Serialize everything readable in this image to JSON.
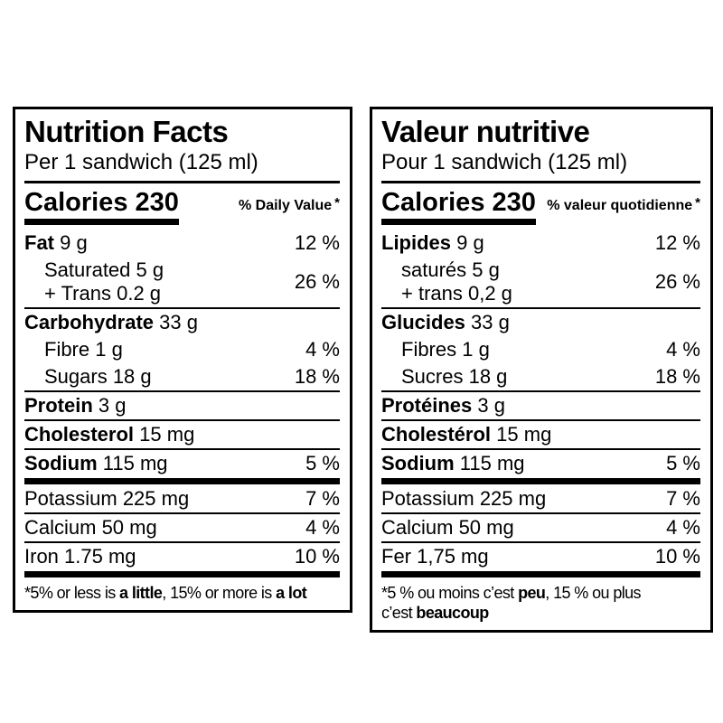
{
  "colors": {
    "text": "#000000",
    "background": "#ffffff",
    "border": "#000000"
  },
  "en": {
    "title": "Nutrition Facts",
    "serving": "Per 1 sandwich (125 ml)",
    "calories_label": "Calories",
    "calories_value": "230",
    "dv_header": "% Daily Value",
    "dv_asterisk": "*",
    "fat_label": "Fat",
    "fat_amount": "9 g",
    "fat_pct": "12 %",
    "saturated_line": "Saturated 5 g",
    "trans_line": "+ Trans 0.2 g",
    "sat_trans_pct": "26 %",
    "carb_label": "Carbohydrate",
    "carb_amount": "33 g",
    "fibre_line": "Fibre 1 g",
    "fibre_pct": "4 %",
    "sugars_line": "Sugars 18 g",
    "sugars_pct": "18 %",
    "protein_label": "Protein",
    "protein_amount": "3 g",
    "cholesterol_label": "Cholesterol",
    "cholesterol_amount": "15 mg",
    "sodium_label": "Sodium",
    "sodium_amount": "115 mg",
    "sodium_pct": "5 %",
    "potassium_line": "Potassium 225 mg",
    "potassium_pct": "7 %",
    "calcium_line": "Calcium 50 mg",
    "calcium_pct": "4 %",
    "iron_line": "Iron 1.75 mg",
    "iron_pct": "10 %",
    "fn_1": "*5% or less is ",
    "fn_b1": "a little",
    "fn_2": ", 15% or more is ",
    "fn_b2": "a lot"
  },
  "fr": {
    "title": "Valeur nutritive",
    "serving": "Pour 1 sandwich (125 ml)",
    "calories_label": "Calories",
    "calories_value": "230",
    "dv_header": "% valeur quotidienne",
    "dv_asterisk": "*",
    "fat_label": "Lipides",
    "fat_amount": "9 g",
    "fat_pct": "12 %",
    "saturated_line": "saturés 5 g",
    "trans_line": "+ trans 0,2 g",
    "sat_trans_pct": "26 %",
    "carb_label": "Glucides",
    "carb_amount": "33 g",
    "fibre_line": "Fibres 1 g",
    "fibre_pct": "4 %",
    "sugars_line": "Sucres 18 g",
    "sugars_pct": "18 %",
    "protein_label": "Protéines",
    "protein_amount": "3 g",
    "cholesterol_label": "Cholestérol",
    "cholesterol_amount": "15 mg",
    "sodium_label": "Sodium",
    "sodium_amount": "115 mg",
    "sodium_pct": "5 %",
    "potassium_line": "Potassium 225 mg",
    "potassium_pct": "7 %",
    "calcium_line": "Calcium 50 mg",
    "calcium_pct": "4 %",
    "iron_line": "Fer 1,75 mg",
    "iron_pct": "10 %",
    "fn_1": "*5 % ou moins c’est ",
    "fn_b1": "peu",
    "fn_2": ", 15 % ou plus",
    "fn_3": "c’est ",
    "fn_b2": "beaucoup"
  }
}
